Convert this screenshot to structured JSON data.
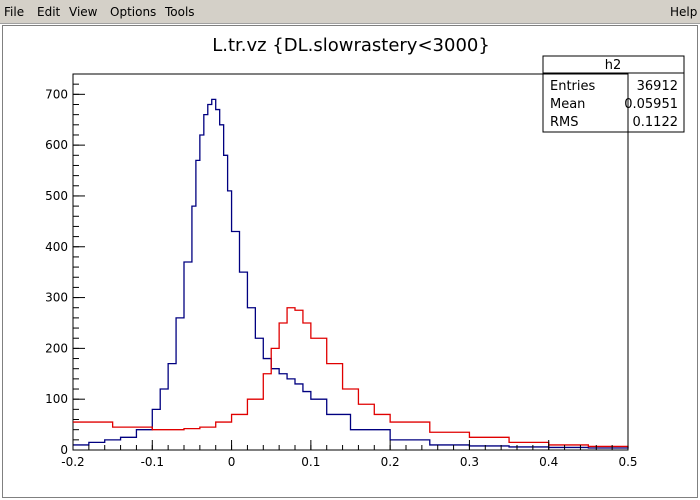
{
  "menu": {
    "file": "File",
    "edit": "Edit",
    "view": "View",
    "options": "Options",
    "tools": "Tools",
    "help": "Help"
  },
  "stats_box": {
    "name": "h2",
    "entries_label": "Entries",
    "entries_value": "36912",
    "mean_label": "Mean",
    "mean_value": "0.05951",
    "rms_label": "RMS",
    "rms_value": "0.1122"
  },
  "colors": {
    "series_blue": "#000080",
    "series_red": "#e00000"
  },
  "chart_data": {
    "type": "line",
    "title": "L.tr.vz {DL.slowrastery<3000}",
    "xlim": [
      -0.2,
      0.5
    ],
    "ylim": [
      0,
      740
    ],
    "x_ticks": [
      "-0.2",
      "-0.1",
      "0",
      "0.1",
      "0.2",
      "0.3",
      "0.4",
      "0.5"
    ],
    "y_ticks": [
      "0",
      "100",
      "200",
      "300",
      "400",
      "500",
      "600",
      "700"
    ],
    "series": [
      {
        "color": "#000080",
        "x": [
          -0.2,
          -0.18,
          -0.16,
          -0.14,
          -0.12,
          -0.1,
          -0.09,
          -0.08,
          -0.07,
          -0.06,
          -0.05,
          -0.045,
          -0.04,
          -0.035,
          -0.03,
          -0.025,
          -0.02,
          -0.015,
          -0.01,
          -0.005,
          0.0,
          0.01,
          0.02,
          0.03,
          0.04,
          0.05,
          0.06,
          0.07,
          0.08,
          0.09,
          0.1,
          0.12,
          0.15,
          0.2,
          0.25,
          0.3,
          0.35,
          0.4,
          0.45,
          0.5
        ],
        "values": [
          10,
          15,
          20,
          25,
          40,
          80,
          120,
          170,
          260,
          370,
          480,
          570,
          620,
          660,
          680,
          690,
          670,
          640,
          580,
          510,
          430,
          350,
          280,
          220,
          180,
          160,
          150,
          140,
          130,
          115,
          100,
          70,
          40,
          20,
          10,
          8,
          6,
          5,
          4,
          3
        ]
      },
      {
        "color": "#e00000",
        "x": [
          -0.2,
          -0.15,
          -0.1,
          -0.08,
          -0.06,
          -0.04,
          -0.02,
          0.0,
          0.02,
          0.04,
          0.05,
          0.06,
          0.07,
          0.08,
          0.09,
          0.1,
          0.12,
          0.14,
          0.16,
          0.18,
          0.2,
          0.25,
          0.3,
          0.35,
          0.4,
          0.45,
          0.5
        ],
        "values": [
          55,
          45,
          40,
          40,
          42,
          45,
          55,
          70,
          100,
          150,
          200,
          250,
          280,
          275,
          250,
          220,
          170,
          120,
          90,
          70,
          55,
          35,
          25,
          15,
          10,
          7,
          5
        ]
      }
    ]
  }
}
